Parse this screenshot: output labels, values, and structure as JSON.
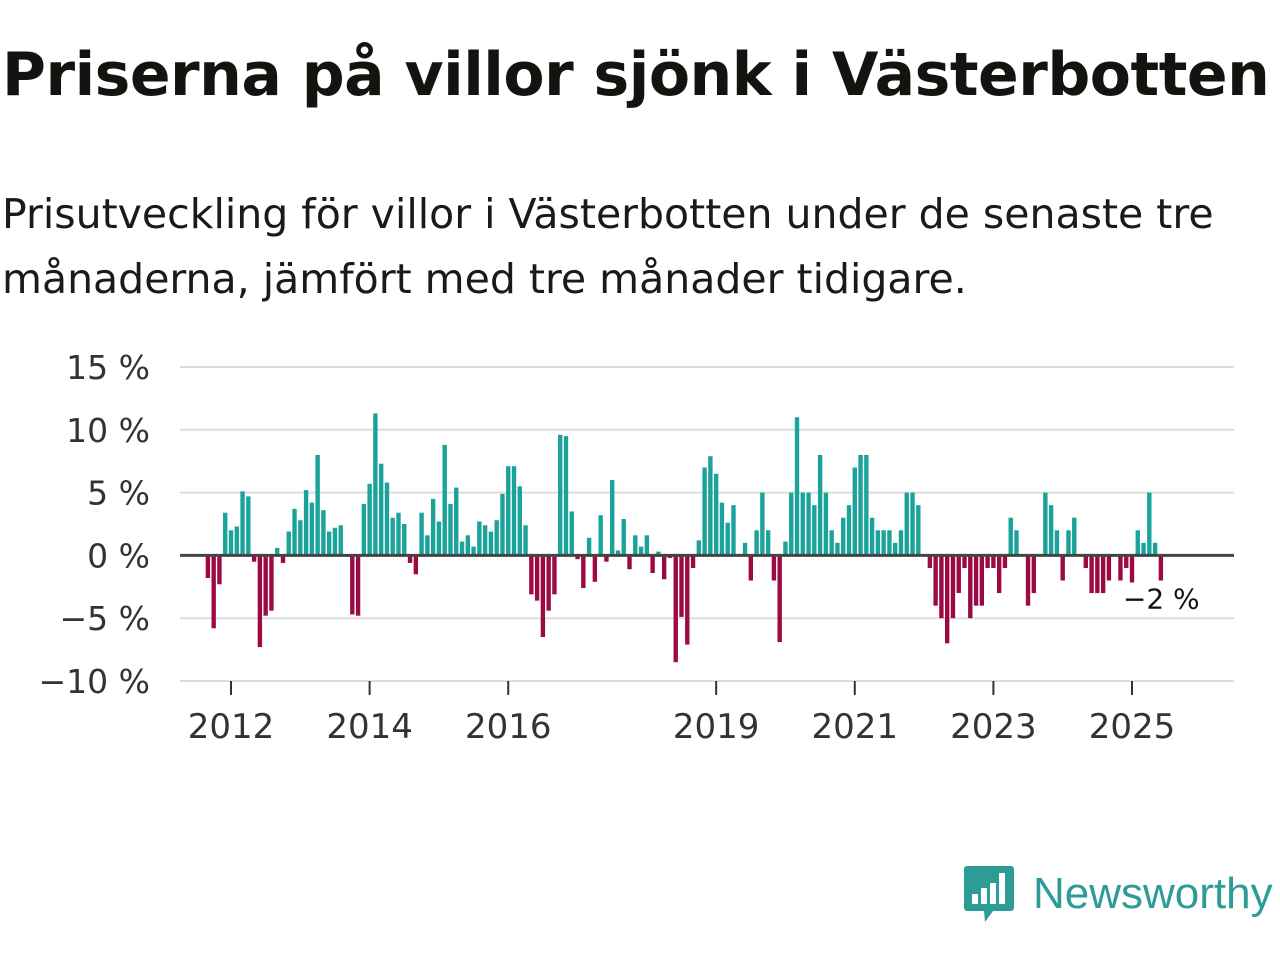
{
  "title": "Priserna på villor sjönk i Västerbotten",
  "subtitle": "Prisutveckling för villor i Västerbotten under de senaste tre månaderna, jämfört med tre månader tidigare.",
  "brand": {
    "name": "Newsworthy",
    "color": "#2d9c97",
    "icon": "newsworthy-chart-icon"
  },
  "colors": {
    "positive": "#1aa39a",
    "negative": "#9b0a44",
    "zero_line": "#444444",
    "grid": "#dddddd"
  },
  "chart_data": {
    "type": "bar",
    "title": "Priserna på villor sjönk i Västerbotten",
    "xlabel": "",
    "ylabel": "",
    "ylim": [
      -10,
      15
    ],
    "y_ticks": [
      15,
      10,
      5,
      0,
      -5,
      -10
    ],
    "y_tick_labels": [
      "15 %",
      "10 %",
      "5 %",
      "0 %",
      "−5 %",
      "−10 %"
    ],
    "x_start": 2011.6667,
    "x_step_months": 1,
    "x_ticks": [
      2012,
      2014,
      2016,
      2019,
      2021,
      2023,
      2025
    ],
    "x_tick_labels": [
      "2012",
      "2014",
      "2016",
      "2019",
      "2021",
      "2023",
      "2025"
    ],
    "values": [
      -1.8,
      -5.8,
      -2.3,
      3.4,
      2.0,
      2.3,
      5.1,
      4.7,
      -0.5,
      -7.3,
      -4.8,
      -4.4,
      0.6,
      -0.6,
      1.9,
      3.7,
      2.8,
      5.2,
      4.2,
      8.0,
      3.6,
      1.9,
      2.2,
      2.4,
      -0.1,
      -4.7,
      -4.8,
      4.1,
      5.7,
      11.3,
      7.3,
      5.8,
      3.0,
      3.4,
      2.5,
      -0.6,
      -1.5,
      3.4,
      1.6,
      4.5,
      2.7,
      8.8,
      4.1,
      5.4,
      1.1,
      1.6,
      0.7,
      2.7,
      2.4,
      1.9,
      2.8,
      4.9,
      7.1,
      7.1,
      5.5,
      2.4,
      -3.1,
      -3.6,
      -6.5,
      -4.4,
      -3.1,
      9.6,
      9.5,
      3.5,
      -0.3,
      -2.6,
      1.4,
      -2.1,
      3.2,
      -0.5,
      6.0,
      0.4,
      2.9,
      -1.1,
      1.6,
      0.7,
      1.6,
      -1.4,
      0.3,
      -1.9,
      -0.2,
      -8.5,
      -4.9,
      -7.1,
      -1.0,
      1.2,
      7.0,
      7.9,
      6.5,
      4.2,
      2.6,
      4.0,
      0.1,
      1.0,
      -2.0,
      2.0,
      5.0,
      2.0,
      -2.0,
      -6.9,
      1.1,
      5.0,
      11.0,
      5.0,
      5.0,
      4.0,
      8.0,
      5.0,
      2.0,
      1.0,
      3.0,
      4.0,
      7.0,
      8.0,
      8.0,
      3.0,
      2.0,
      2.0,
      2.0,
      1.0,
      2.0,
      5.0,
      5.0,
      4.0,
      0.0,
      -1.0,
      -4.0,
      -5.0,
      -7.0,
      -5.0,
      -3.0,
      -1.0,
      -5.0,
      -4.0,
      -4.0,
      -1.0,
      -1.0,
      -3.0,
      -1.0,
      3.0,
      2.0,
      0.0,
      -4.0,
      -3.0,
      0.0,
      5.0,
      4.0,
      2.0,
      -2.0,
      2.0,
      3.0,
      0.0,
      -1.0,
      -3.0,
      -3.0,
      -3.0,
      -2.0,
      0.0,
      -2.0,
      -1.0,
      -3.0,
      2.0,
      1.0,
      5.0,
      1.0,
      -2.0
    ],
    "last_value_label": "−2 %"
  }
}
